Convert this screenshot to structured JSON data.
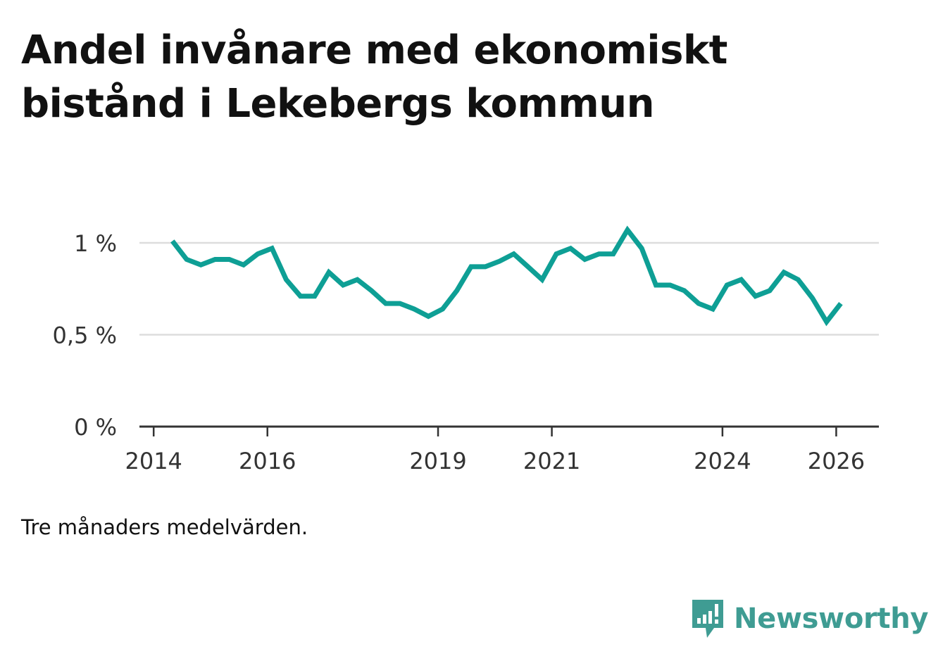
{
  "page": {
    "title": "Andel invånare med ekonomiskt bistånd i Lekebergs kommun",
    "footnote": "Tre månaders medelvärden.",
    "brand": "Newsworthy"
  },
  "colors": {
    "line": "#0e9f95",
    "grid": "#dddddd",
    "axis": "#333333",
    "brand": "#3f9c93"
  },
  "chart_data": {
    "type": "line",
    "title": "Andel invånare med ekonomiskt bistånd i Lekebergs kommun",
    "xlabel": "",
    "ylabel": "",
    "xlim": [
      2013.75,
      2026.75
    ],
    "ylim": [
      0,
      1.0
    ],
    "y_ticks": [
      {
        "value": 0,
        "label": "0 %"
      },
      {
        "value": 0.5,
        "label": "0,5 %"
      },
      {
        "value": 1.0,
        "label": "1 %"
      }
    ],
    "x_ticks": [
      {
        "value": 2014,
        "label": "2014"
      },
      {
        "value": 2016,
        "label": "2016"
      },
      {
        "value": 2019,
        "label": "2019"
      },
      {
        "value": 2021,
        "label": "2021"
      },
      {
        "value": 2024,
        "label": "2024"
      },
      {
        "value": 2026,
        "label": "2026"
      }
    ],
    "grid": true,
    "series": [
      {
        "name": "Andel invånare med ekonomiskt bistånd",
        "x": [
          2014.33,
          2014.58,
          2014.83,
          2015.08,
          2015.33,
          2015.58,
          2015.83,
          2016.08,
          2016.33,
          2016.58,
          2016.83,
          2017.08,
          2017.33,
          2017.58,
          2017.83,
          2018.08,
          2018.33,
          2018.58,
          2018.83,
          2019.08,
          2019.33,
          2019.58,
          2019.83,
          2020.08,
          2020.33,
          2020.58,
          2020.83,
          2021.08,
          2021.33,
          2021.58,
          2021.83,
          2022.08,
          2022.33,
          2022.58,
          2022.83,
          2023.08,
          2023.33,
          2023.58,
          2023.83,
          2024.08,
          2024.33,
          2024.58,
          2024.83,
          2025.08,
          2025.33,
          2025.58,
          2025.83,
          2026.08
        ],
        "values": [
          1.01,
          0.91,
          0.88,
          0.91,
          0.91,
          0.88,
          0.94,
          0.97,
          0.8,
          0.71,
          0.71,
          0.84,
          0.77,
          0.8,
          0.74,
          0.67,
          0.67,
          0.64,
          0.6,
          0.64,
          0.74,
          0.87,
          0.87,
          0.9,
          0.94,
          0.87,
          0.8,
          0.94,
          0.97,
          0.91,
          0.94,
          0.94,
          1.07,
          0.97,
          0.77,
          0.77,
          0.74,
          0.67,
          0.64,
          0.77,
          0.8,
          0.71,
          0.74,
          0.84,
          0.8,
          0.7,
          0.57,
          0.67
        ]
      }
    ]
  }
}
